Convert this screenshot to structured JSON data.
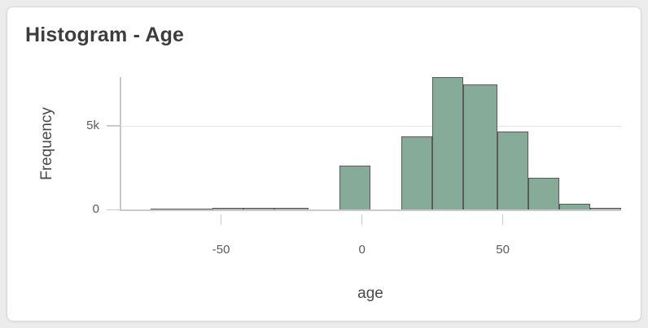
{
  "card": {
    "title": "Histogram - Age"
  },
  "chart_data": {
    "type": "bar",
    "subtype": "histogram",
    "title": "Histogram - Age",
    "xlabel": "age",
    "ylabel": "Frequency",
    "xlim": [
      -86,
      92
    ],
    "ylim": [
      0,
      7900
    ],
    "grid": "horizontal-only",
    "legend": "none",
    "x_ticks": [
      {
        "value": -50,
        "label": "-50"
      },
      {
        "value": 0,
        "label": "0"
      },
      {
        "value": 50,
        "label": "50"
      }
    ],
    "y_ticks": [
      {
        "value": 0,
        "label": "0"
      },
      {
        "value": 5000,
        "label": "5k"
      }
    ],
    "bin_edges": [
      -75,
      -64,
      -53,
      -42,
      -31,
      -19,
      -8,
      3,
      14,
      25,
      36,
      48,
      59,
      70,
      81,
      92
    ],
    "counts": [
      25,
      50,
      75,
      100,
      100,
      0,
      2600,
      0,
      4350,
      7900,
      7450,
      4650,
      1900,
      350,
      75
    ],
    "bar_color": "#86ac99",
    "bar_border_color": "#5a5a5a"
  }
}
